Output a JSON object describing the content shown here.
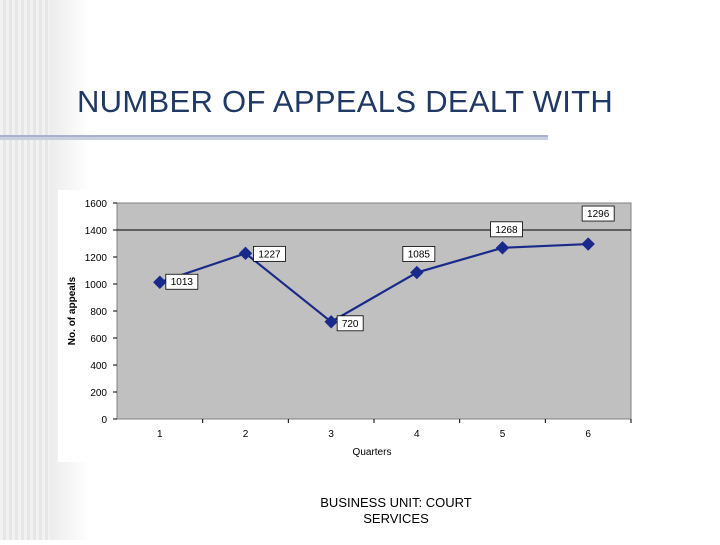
{
  "slide": {
    "title": "NUMBER OF APPEALS DEALT WITH",
    "footer_line1": "BUSINESS UNIT:  COURT",
    "footer_line2": "SERVICES"
  },
  "colors": {
    "title": "#1f3864",
    "line": "#1a2a8a",
    "plot_background": "#c0c0c0"
  },
  "chart_data": {
    "type": "line",
    "title": "",
    "xlabel": "Quarters",
    "ylabel": "No. of appeals",
    "categories": [
      "1",
      "2",
      "3",
      "4",
      "5",
      "6"
    ],
    "series": [
      {
        "values": [
          1013,
          1227,
          720,
          1085,
          1268,
          1296
        ]
      }
    ],
    "data_labels": [
      "1013",
      "1227",
      "720",
      "1085",
      "1268",
      "1296"
    ],
    "yticks": [
      "0",
      "200",
      "400",
      "600",
      "800",
      "1000",
      "1200",
      "1400",
      "1600"
    ],
    "ylim": [
      0,
      1600
    ],
    "grid": "horizontal line at 1400 only",
    "legend": "none",
    "marker": "diamond"
  }
}
